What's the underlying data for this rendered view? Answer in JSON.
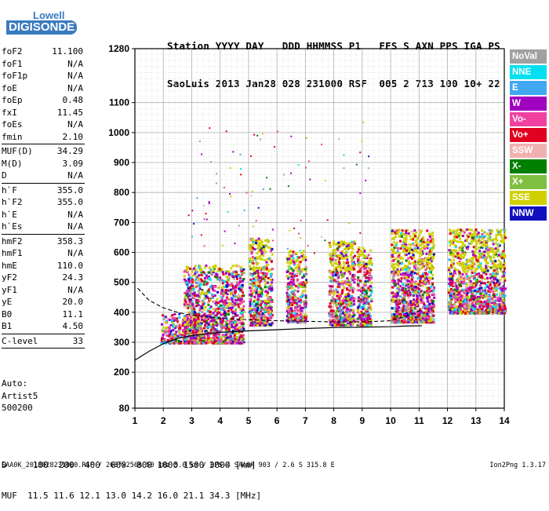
{
  "logo": {
    "line1": "Lowell",
    "line2": "DIGISONDE"
  },
  "header": {
    "line1": "Station YYYY DAY   DDD HHMMSS P1   FFS S AXN PPS IGA PS",
    "line2": "SaoLuis 2013 Jan28 028 231000 RSF  005 2 713 100 10+ 22"
  },
  "params": [
    {
      "k": "foF2",
      "v": "11.100"
    },
    {
      "k": "foF1",
      "v": "N/A"
    },
    {
      "k": "foF1p",
      "v": "N/A"
    },
    {
      "k": "foE",
      "v": "N/A"
    },
    {
      "k": "foEp",
      "v": "0.48"
    },
    {
      "k": "fxI",
      "v": "11.45"
    },
    {
      "k": "foEs",
      "v": "N/A"
    },
    {
      "k": "fmin",
      "v": "2.10"
    },
    {
      "sep": true
    },
    {
      "k": "MUF(D)",
      "v": "34.29"
    },
    {
      "k": "M(D)",
      "v": "3.09"
    },
    {
      "k": "D",
      "v": "N/A"
    },
    {
      "sep": true
    },
    {
      "k": "h`F",
      "v": "355.0"
    },
    {
      "k": "h`F2",
      "v": "355.0"
    },
    {
      "k": "h`E",
      "v": "N/A"
    },
    {
      "k": "h`Es",
      "v": "N/A"
    },
    {
      "sep": true
    },
    {
      "k": "hmF2",
      "v": "358.3"
    },
    {
      "k": "hmF1",
      "v": "N/A"
    },
    {
      "k": "hmE",
      "v": "110.0"
    },
    {
      "k": "yF2",
      "v": "24.3"
    },
    {
      "k": "yF1",
      "v": "N/A"
    },
    {
      "k": "yE",
      "v": "20.0"
    },
    {
      "k": "B0",
      "v": "11.1"
    },
    {
      "k": "B1",
      "v": "4.50"
    },
    {
      "sep": true
    },
    {
      "k": "C-level",
      "v": "33"
    },
    {
      "sep": true
    }
  ],
  "auto": {
    "line1": "Auto:",
    "line2": "Artist5",
    "line3": "500200"
  },
  "legend": [
    {
      "label": "NoVal",
      "color": "#a0a0a0"
    },
    {
      "label": "NNE",
      "color": "#00e0f0"
    },
    {
      "label": "E",
      "color": "#40a8f0"
    },
    {
      "label": "W",
      "color": "#a000c0"
    },
    {
      "label": "Vo-",
      "color": "#f040a0"
    },
    {
      "label": "Vo+",
      "color": "#e00020"
    },
    {
      "label": "SSW",
      "color": "#f0b0b0"
    },
    {
      "label": "X-",
      "color": "#008000"
    },
    {
      "label": "X+",
      "color": "#80c040"
    },
    {
      "label": "SSE",
      "color": "#d0d000"
    },
    {
      "label": "NNW",
      "color": "#1010c0"
    }
  ],
  "muf_table": {
    "line1": "D     100  200  400  600  800 1000 1500 3000 [km]",
    "line2": "MUF  11.5 11.6 12.1 13.0 14.2 16.0 21.1 34.3 [MHz]"
  },
  "footer": {
    "left": "SAA0K_2013028231000.RSF / 260fx256h 50 kHz 5.0 km / DPS-4 SAA0K 903 / 2.6 S 315.8 E",
    "right": "Ion2Png 1.3.17"
  },
  "chart_data": {
    "type": "scatter",
    "xlim": [
      1,
      14
    ],
    "ylim": [
      80,
      1280
    ],
    "x_ticks": [
      1,
      2,
      3,
      4,
      5,
      6,
      7,
      8,
      9,
      10,
      11,
      12,
      13,
      14
    ],
    "y_ticks": [
      80,
      200,
      300,
      400,
      500,
      600,
      700,
      800,
      900,
      1000,
      1100,
      1280
    ],
    "xlabel": "",
    "ylabel": "",
    "grid": true,
    "legend_position": "right",
    "series": [
      {
        "name": "NoVal",
        "color": "#a0a0a0"
      },
      {
        "name": "NNE",
        "color": "#00e0f0"
      },
      {
        "name": "E",
        "color": "#40a8f0"
      },
      {
        "name": "W",
        "color": "#a000c0"
      },
      {
        "name": "Vo-",
        "color": "#f040a0"
      },
      {
        "name": "Vo+",
        "color": "#e00020"
      },
      {
        "name": "SSW",
        "color": "#f0b0b0"
      },
      {
        "name": "X-",
        "color": "#008000"
      },
      {
        "name": "X+",
        "color": "#80c040"
      },
      {
        "name": "SSE",
        "color": "#d0d000"
      },
      {
        "name": "NNW",
        "color": "#1010c0"
      }
    ],
    "echo_clusters": [
      {
        "f": [
          1.9,
          3.2
        ],
        "h": [
          300,
          400
        ]
      },
      {
        "f": [
          2.7,
          4.8
        ],
        "h": [
          300,
          560
        ]
      },
      {
        "f": [
          5.0,
          5.8
        ],
        "h": [
          360,
          650
        ]
      },
      {
        "f": [
          6.3,
          7.0
        ],
        "h": [
          370,
          610
        ]
      },
      {
        "f": [
          7.8,
          8.7
        ],
        "h": [
          360,
          640
        ]
      },
      {
        "f": [
          8.8,
          9.3
        ],
        "h": [
          360,
          620
        ]
      },
      {
        "f": [
          10.0,
          11.5
        ],
        "h": [
          370,
          680
        ]
      },
      {
        "f": [
          12.0,
          14.0
        ],
        "h": [
          400,
          680
        ]
      }
    ],
    "profile_curve": {
      "x": [
        1.0,
        1.5,
        2.0,
        2.5,
        3.0,
        3.5,
        4.0,
        5.0,
        6.0,
        7.0,
        8.0,
        9.0,
        10.0,
        10.5,
        11.1
      ],
      "y": [
        240,
        270,
        295,
        313,
        322,
        328,
        333,
        338,
        342,
        346,
        349,
        350,
        352,
        354,
        355
      ]
    },
    "trace_curve": {
      "x": [
        1.1,
        1.5,
        2.0,
        2.5,
        3.0,
        3.5,
        4.0,
        5.0,
        6.0,
        7.0,
        8.0,
        9.0,
        10.0,
        10.5,
        11.1
      ],
      "y": [
        480,
        440,
        415,
        400,
        390,
        385,
        380,
        375,
        372,
        370,
        368,
        368,
        372,
        385,
        408
      ]
    }
  }
}
